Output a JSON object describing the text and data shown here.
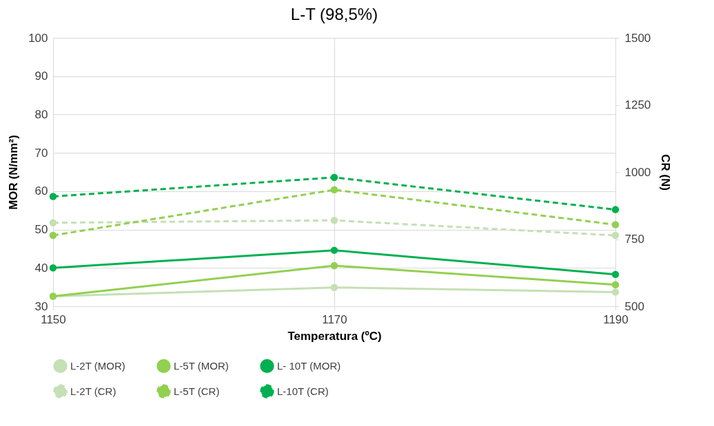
{
  "chart_data": {
    "type": "line",
    "title": "L-T (98,5%)",
    "xlabel": "Temperatura (ºC)",
    "ylabel": "MOR (N/mm²)",
    "y2label": "CR (N)",
    "x": [
      1150,
      1170,
      1190
    ],
    "xlim": [
      1150,
      1190
    ],
    "xticks": [
      1150,
      1170,
      1190
    ],
    "ylim": [
      30,
      100
    ],
    "yticks": [
      30,
      40,
      50,
      60,
      70,
      80,
      90,
      100
    ],
    "y2lim": [
      500,
      1500
    ],
    "y2ticks": [
      500,
      750,
      1000,
      1250,
      1500
    ],
    "grid": true,
    "legend": "bottom",
    "marker": "circle",
    "series": [
      {
        "name": "L-2T (MOR)",
        "color": "#c5e0b4",
        "values": [
          32.6,
          34.9,
          33.7
        ],
        "line_style": "solid"
      },
      {
        "name": "L-5T (MOR)",
        "color": "#92d050",
        "values": [
          32.6,
          40.6,
          35.6
        ],
        "line_style": "solid"
      },
      {
        "name": "L- 10T (MOR)",
        "color": "#00b050",
        "values": [
          40.0,
          44.6,
          38.3
        ],
        "line_style": "solid"
      },
      {
        "name": "L-2T (CR)",
        "color": "#c5e0b4",
        "values": [
          811,
          820,
          764
        ],
        "axis": "y2",
        "line_style": "dashed"
      },
      {
        "name": "L-5T (CR)",
        "color": "#92d050",
        "values": [
          764,
          934,
          804
        ],
        "axis": "y2",
        "line_style": "dashed"
      },
      {
        "name": "L-10T (CR)",
        "color": "#00b050",
        "values": [
          909,
          980,
          860
        ],
        "axis": "y2",
        "line_style": "dashed"
      }
    ]
  }
}
